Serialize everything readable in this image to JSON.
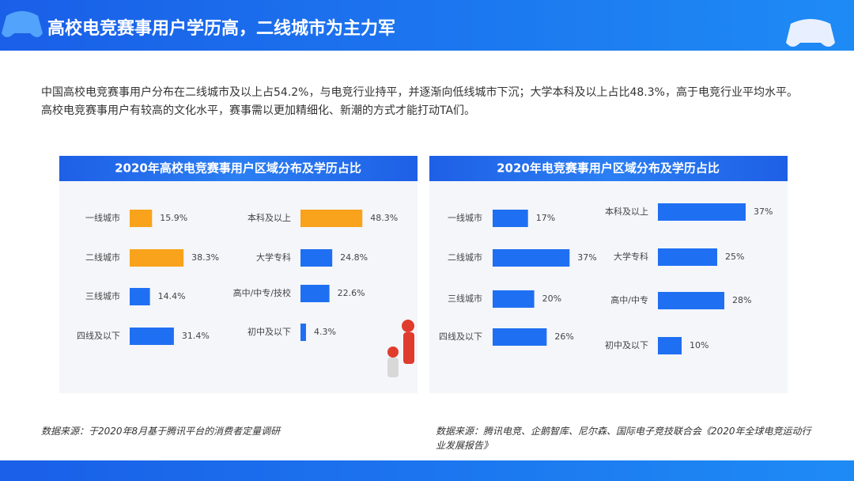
{
  "header": {
    "title": "高校电竞赛事用户学历高，二线城市为主力军"
  },
  "intro": [
    "中国高校电竞赛事用户分布在二线城市及以上占54.2%，与电竞行业持平，并逐渐向低线城市下沉；大学本科及以上占比48.3%，高于电竞行业平均水平。",
    "高校电竞赛事用户有较高的文化水平，赛事需以更加精细化、新潮的方式才能打动TA们。"
  ],
  "panels": [
    {
      "title": "2020年高校电竞赛事用户区域分布及学历占比",
      "source": "数据来源：于2020年8月基于腾讯平台的消费者定量调研"
    },
    {
      "title": "2020年电竞赛事用户区域分布及学历占比",
      "source": "数据来源：腾讯电竞、企鹅智库、尼尔森、国际电子竞技联合会《2020年全球电竞运动行业发展报告》"
    }
  ],
  "chart_data": [
    {
      "type": "bar",
      "categories": [
        "一线城市",
        "二线城市",
        "三线城市",
        "四线及以下"
      ],
      "values": [
        15.9,
        38.3,
        14.4,
        31.4
      ],
      "value_labels": [
        "15.9%",
        "38.3%",
        "14.4%",
        "31.4%"
      ],
      "colors": [
        "#f9a21b",
        "#f9a21b",
        "#1f6ff2",
        "#1f6ff2"
      ]
    },
    {
      "type": "bar",
      "categories": [
        "本科及以上",
        "大学专科",
        "高中/中专/技校",
        "初中及以下"
      ],
      "values": [
        48.3,
        24.8,
        22.6,
        4.3
      ],
      "value_labels": [
        "48.3%",
        "24.8%",
        "22.6%",
        "4.3%"
      ],
      "colors": [
        "#f9a21b",
        "#1f6ff2",
        "#1f6ff2",
        "#1f6ff2"
      ]
    },
    {
      "type": "bar",
      "categories": [
        "一线城市",
        "二线城市",
        "三线城市",
        "四线及以下"
      ],
      "values": [
        17,
        37,
        20,
        26
      ],
      "value_labels": [
        "17%",
        "37%",
        "20%",
        "26%"
      ],
      "colors": [
        "#1f6ff2",
        "#1f6ff2",
        "#1f6ff2",
        "#1f6ff2"
      ]
    },
    {
      "type": "bar",
      "categories": [
        "本科及以上",
        "大学专科",
        "高中/中专",
        "初中及以下"
      ],
      "values": [
        37,
        25,
        28,
        10
      ],
      "value_labels": [
        "37%",
        "25%",
        "28%",
        "10%"
      ],
      "colors": [
        "#1f6ff2",
        "#1f6ff2",
        "#1f6ff2",
        "#1f6ff2"
      ]
    }
  ]
}
